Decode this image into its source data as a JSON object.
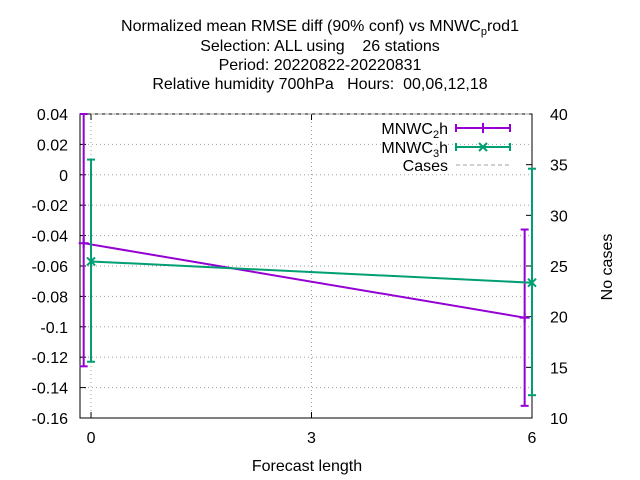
{
  "chart_data": {
    "type": "line",
    "title_lines": {
      "line1_prefix": "Normalized mean RMSE diff (90% conf) vs MNWC",
      "line1_sub": "p",
      "line1_suffix": "rod1",
      "line2": "Selection: ALL using    26 stations",
      "line3": "Period: 20220822-20220831",
      "line4": "Relative humidity 700hPa   Hours:  00,06,12,18"
    },
    "xlabel": "Forecast length",
    "ylabel_right": "No cases",
    "xlim": [
      -0.15,
      6
    ],
    "ylim": [
      -0.16,
      0.04
    ],
    "y2lim": [
      10,
      40
    ],
    "xticks": [
      "0",
      "3",
      "6"
    ],
    "yticks": [
      "0.04",
      "0.02",
      "0",
      "-0.02",
      "-0.04",
      "-0.06",
      "-0.08",
      "-0.1",
      "-0.12",
      "-0.14",
      "-0.16"
    ],
    "y2ticks": [
      "40",
      "35",
      "30",
      "25",
      "20",
      "15",
      "10"
    ],
    "grid": true,
    "legend_position": "top-right",
    "series": [
      {
        "name_main": "MNWC",
        "name_sub": "2",
        "name_tail": "h",
        "color": "#9400d3",
        "marker": "plus",
        "points": [
          {
            "x": -0.1,
            "y": -0.045,
            "lo": -0.126,
            "hi": 0.04
          },
          {
            "x": 5.9,
            "y": -0.094,
            "lo": -0.152,
            "hi": -0.036
          }
        ]
      },
      {
        "name_main": "MNWC",
        "name_sub": "3",
        "name_tail": "h",
        "color": "#009e73",
        "marker": "cross",
        "points": [
          {
            "x": 0.0,
            "y": -0.057,
            "lo": -0.123,
            "hi": 0.01
          },
          {
            "x": 6.0,
            "y": -0.071,
            "lo": -0.145,
            "hi": 0.004
          }
        ]
      }
    ],
    "cases_series": {
      "name": "Cases",
      "color": "#a0a0a0",
      "x": [
        0,
        6
      ],
      "y": [
        40,
        40
      ]
    }
  }
}
